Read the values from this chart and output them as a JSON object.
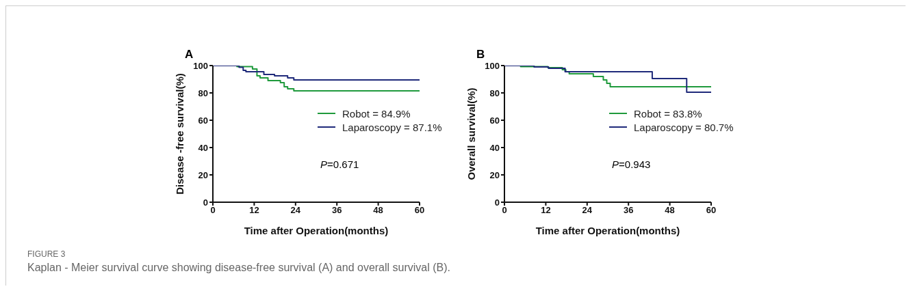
{
  "chart_data": [
    {
      "type": "step",
      "title": "A",
      "xlabel": "Time after Operation(months)",
      "ylabel": "Disease -free survival(%)",
      "xlim": [
        0,
        60
      ],
      "xticks": [
        0,
        12,
        24,
        36,
        48,
        60
      ],
      "ylim": [
        0,
        100
      ],
      "yticks": [
        0,
        20,
        40,
        60,
        80,
        100
      ],
      "grid": false,
      "legend": "right",
      "annotations": [
        "P=0.671",
        "FIGURE 3",
        "Kaplan - Meier survival curve showing disease-free survival (A) and overall survival (B)."
      ],
      "series": [
        {
          "name": "Robot = 84.9%",
          "color": "#1f9a3c",
          "x": [
            0,
            7,
            11.5,
            12.8,
            13.7,
            16,
            19.6,
            20.7,
            21.7,
            23.5,
            60
          ],
          "values": [
            100,
            99.2,
            97.5,
            92.5,
            91,
            89,
            87.5,
            84.5,
            83,
            81.5,
            81.5
          ]
        },
        {
          "name": "Laparoscopy = 87.1%",
          "color": "#1f2a7a",
          "x": [
            0,
            7.6,
            8.8,
            9.6,
            14.8,
            17.9,
            21.7,
            23.5,
            60
          ],
          "values": [
            100,
            98.8,
            96.5,
            95.5,
            93.5,
            92.5,
            91,
            89.5,
            89.5
          ]
        }
      ]
    },
    {
      "type": "step",
      "title": "B",
      "xlabel": "Time after Operation(months)",
      "ylabel": "Overall survival(%)",
      "xlim": [
        0,
        60
      ],
      "xticks": [
        0,
        12,
        24,
        36,
        48,
        60
      ],
      "ylim": [
        0,
        100
      ],
      "yticks": [
        0,
        20,
        40,
        60,
        80,
        100
      ],
      "grid": false,
      "legend": "right",
      "annotations": [
        "P=0.943"
      ],
      "series": [
        {
          "name": "Robot = 83.8%",
          "color": "#1f9a3c",
          "x": [
            0,
            4.7,
            12.6,
            16.8,
            17.8,
            18.8,
            25.8,
            28.7,
            29.7,
            30.7,
            60
          ],
          "values": [
            100,
            99.2,
            98.5,
            97,
            95.5,
            94,
            92,
            89.5,
            87,
            84.5,
            84.5
          ]
        },
        {
          "name": "Laparoscopy = 80.7%",
          "color": "#1f2a7a",
          "x": [
            0,
            8.6,
            12.8,
            17.6,
            42.9,
            52.9,
            60
          ],
          "values": [
            100,
            99,
            98,
            95.5,
            90.5,
            80.5,
            80.5
          ]
        }
      ]
    }
  ]
}
